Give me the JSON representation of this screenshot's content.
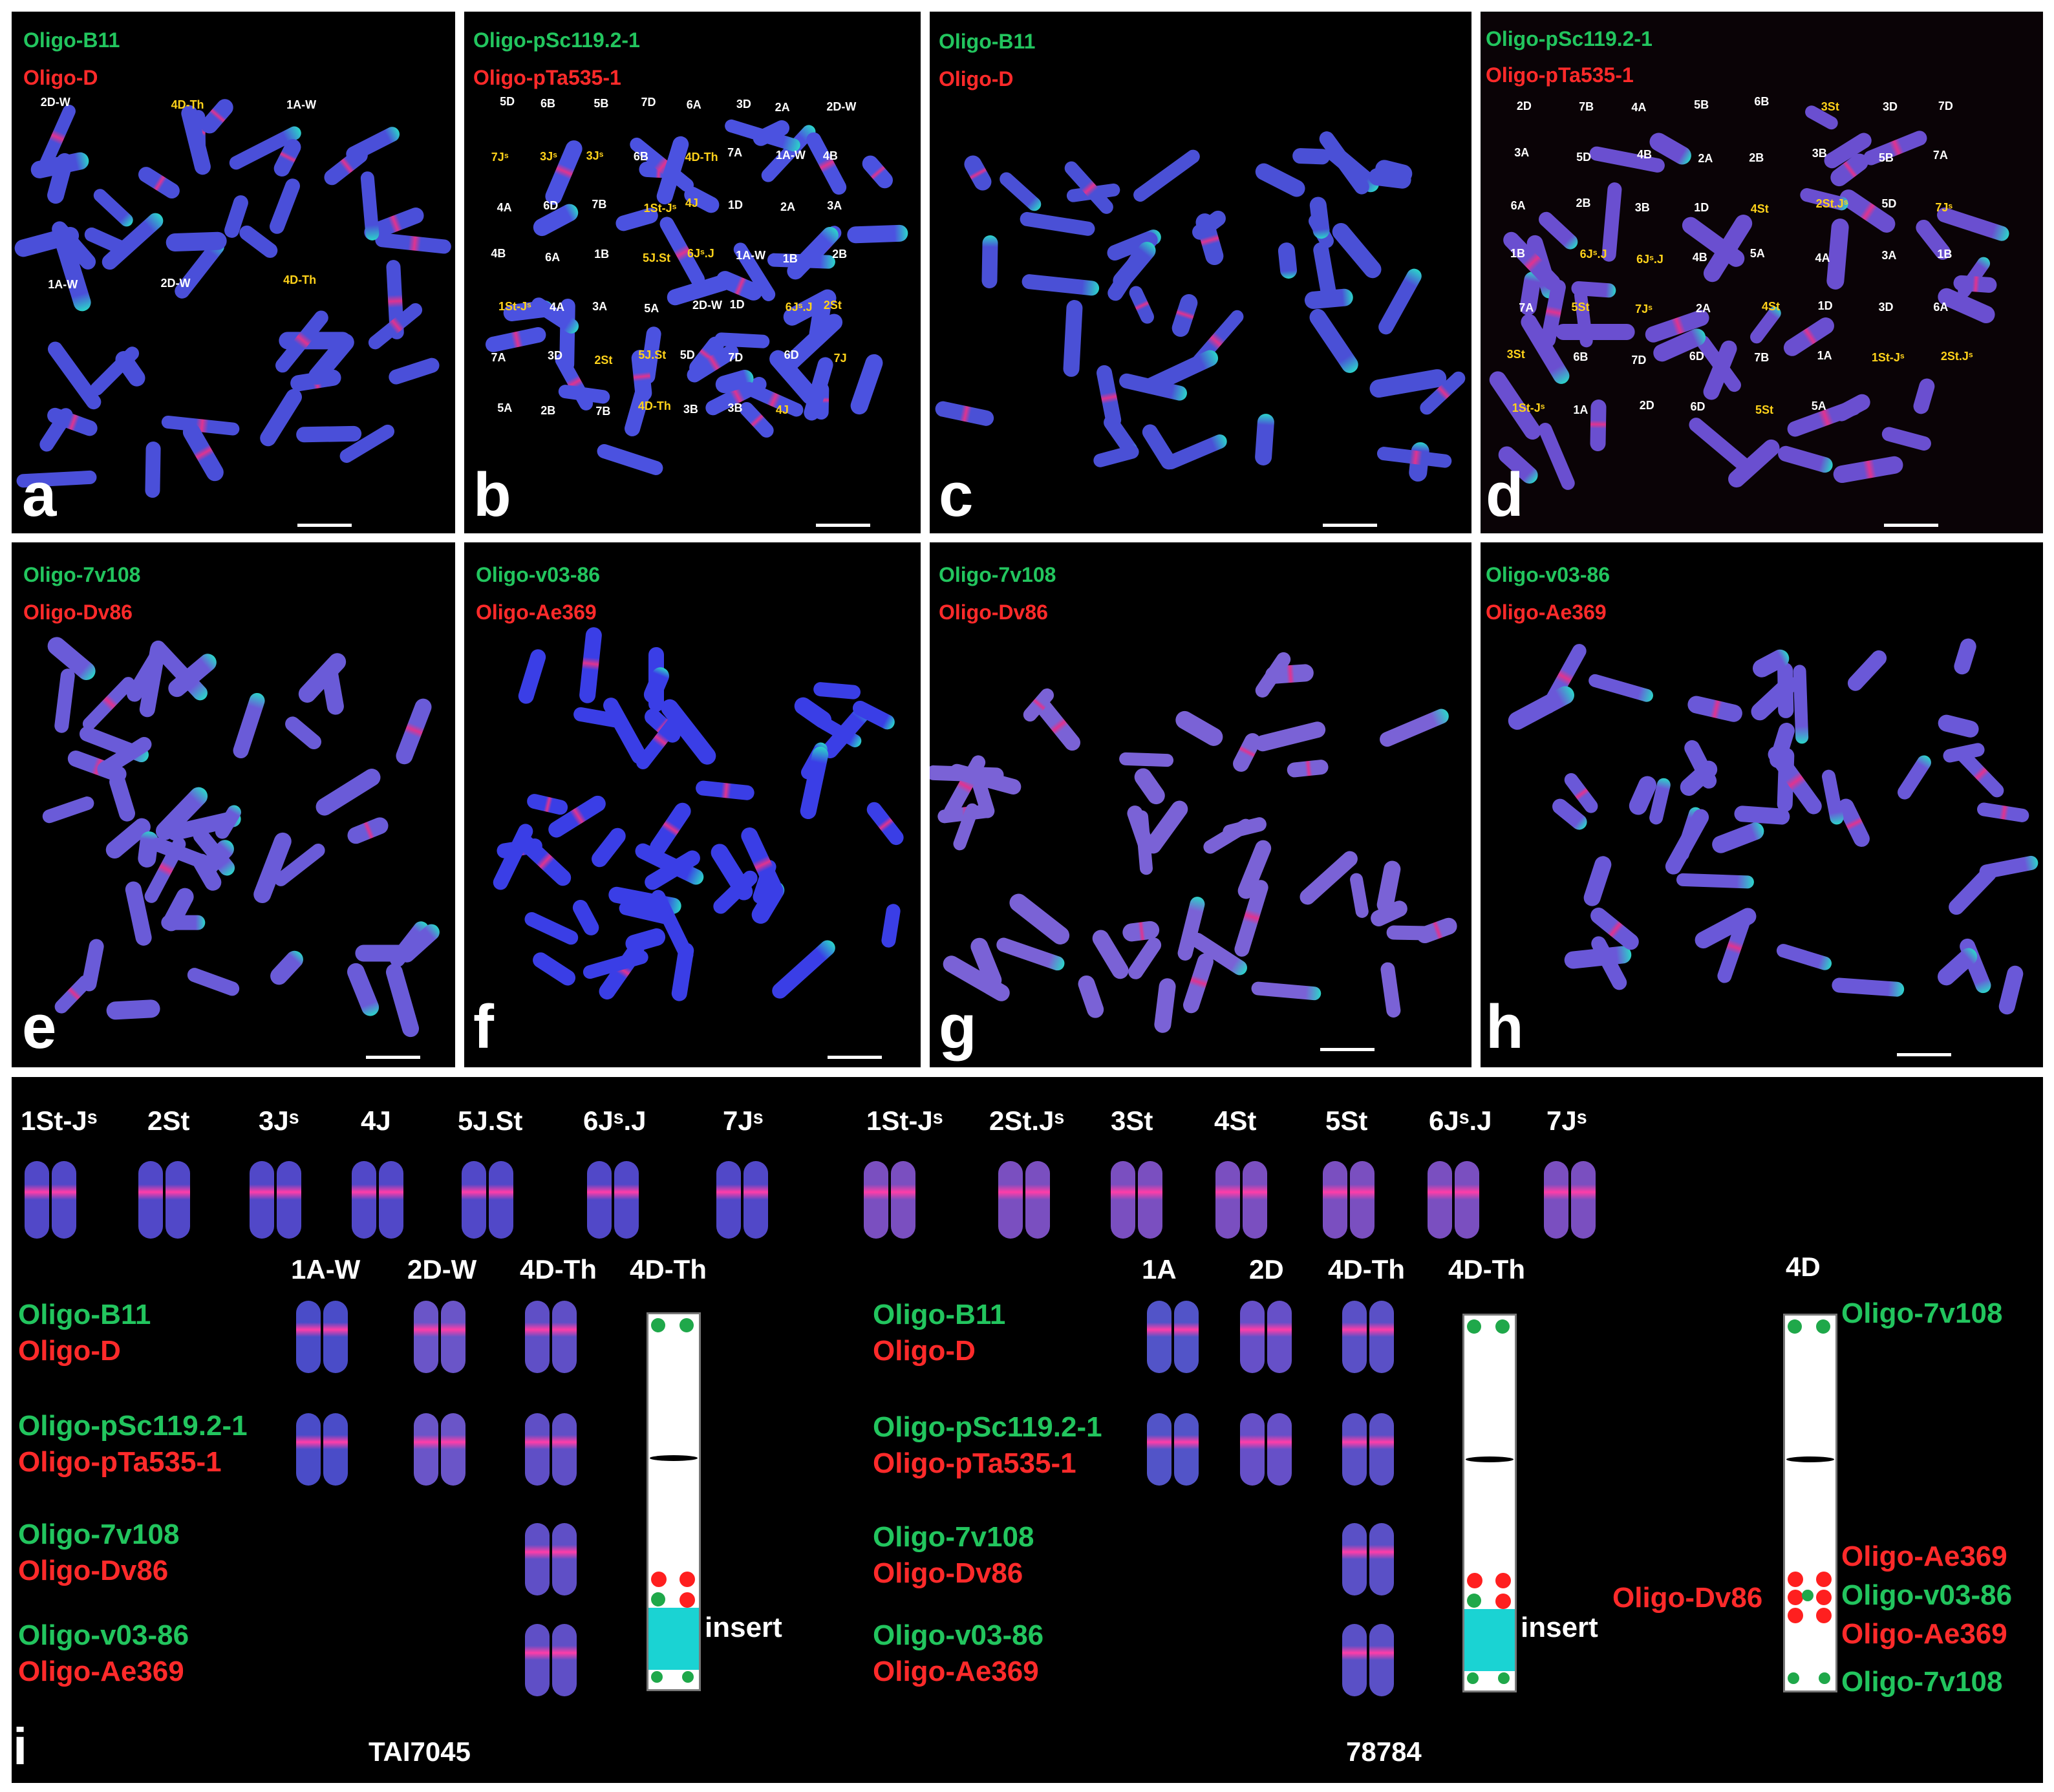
{
  "colors": {
    "green": "#22c55e",
    "red": "#ff2a2a",
    "white": "#ffffff",
    "yellow": "#ffd21a",
    "background": "#000000"
  },
  "panels": [
    {
      "id": "a",
      "letter": "a",
      "probe_green": "Oligo-B11",
      "probe_red": "Oligo-D",
      "labels": [
        {
          "text": "2D-W",
          "color": "white"
        },
        {
          "text": "4D-Th",
          "color": "yellow"
        },
        {
          "text": "1A-W",
          "color": "white"
        },
        {
          "text": "1A-W",
          "color": "white"
        },
        {
          "text": "2D-W",
          "color": "white"
        },
        {
          "text": "4D-Th",
          "color": "yellow"
        }
      ]
    },
    {
      "id": "b",
      "letter": "b",
      "probe_green": "Oligo-pSc119.2-1",
      "probe_red": "Oligo-pTa535-1",
      "labels": [
        {
          "text": "5D",
          "color": "white"
        },
        {
          "text": "6B",
          "color": "white"
        },
        {
          "text": "5B",
          "color": "white"
        },
        {
          "text": "7D",
          "color": "white"
        },
        {
          "text": "6A",
          "color": "white"
        },
        {
          "text": "3D",
          "color": "white"
        },
        {
          "text": "2A",
          "color": "white"
        },
        {
          "text": "2D-W",
          "color": "white"
        },
        {
          "text": "7Jˢ",
          "color": "yellow"
        },
        {
          "text": "3Jˢ",
          "color": "yellow"
        },
        {
          "text": "3Jˢ",
          "color": "yellow"
        },
        {
          "text": "6B",
          "color": "white"
        },
        {
          "text": "4D-Th",
          "color": "yellow"
        },
        {
          "text": "7A",
          "color": "white"
        },
        {
          "text": "1A-W",
          "color": "white"
        },
        {
          "text": "4B",
          "color": "white"
        },
        {
          "text": "4A",
          "color": "white"
        },
        {
          "text": "6D",
          "color": "white"
        },
        {
          "text": "7B",
          "color": "white"
        },
        {
          "text": "1St-Jˢ",
          "color": "yellow"
        },
        {
          "text": "4J",
          "color": "yellow"
        },
        {
          "text": "1D",
          "color": "white"
        },
        {
          "text": "2A",
          "color": "white"
        },
        {
          "text": "3A",
          "color": "white"
        },
        {
          "text": "4B",
          "color": "white"
        },
        {
          "text": "6A",
          "color": "white"
        },
        {
          "text": "1B",
          "color": "white"
        },
        {
          "text": "5J.St",
          "color": "yellow"
        },
        {
          "text": "6Jˢ.J",
          "color": "yellow"
        },
        {
          "text": "1A-W",
          "color": "white"
        },
        {
          "text": "1B",
          "color": "white"
        },
        {
          "text": "2B",
          "color": "white"
        },
        {
          "text": "1St-Jˢ",
          "color": "yellow"
        },
        {
          "text": "4A",
          "color": "white"
        },
        {
          "text": "3A",
          "color": "white"
        },
        {
          "text": "5A",
          "color": "white"
        },
        {
          "text": "2D-W",
          "color": "white"
        },
        {
          "text": "1D",
          "color": "white"
        },
        {
          "text": "6Jˢ.J",
          "color": "yellow"
        },
        {
          "text": "2St",
          "color": "yellow"
        },
        {
          "text": "7A",
          "color": "white"
        },
        {
          "text": "3D",
          "color": "white"
        },
        {
          "text": "2St",
          "color": "yellow"
        },
        {
          "text": "5J.St",
          "color": "yellow"
        },
        {
          "text": "5D",
          "color": "white"
        },
        {
          "text": "7D",
          "color": "white"
        },
        {
          "text": "6D",
          "color": "white"
        },
        {
          "text": "7J",
          "color": "yellow"
        },
        {
          "text": "5A",
          "color": "white"
        },
        {
          "text": "2B",
          "color": "white"
        },
        {
          "text": "7B",
          "color": "white"
        },
        {
          "text": "4D-Th",
          "color": "yellow"
        },
        {
          "text": "3B",
          "color": "white"
        },
        {
          "text": "3B",
          "color": "white"
        },
        {
          "text": "4J",
          "color": "yellow"
        }
      ]
    },
    {
      "id": "c",
      "letter": "c",
      "probe_green": "Oligo-B11",
      "probe_red": "Oligo-D",
      "labels": []
    },
    {
      "id": "d",
      "letter": "d",
      "probe_green": "Oligo-pSc119.2-1",
      "probe_red": "Oligo-pTa535-1",
      "labels": [
        {
          "text": "2D",
          "color": "white"
        },
        {
          "text": "7B",
          "color": "white"
        },
        {
          "text": "4A",
          "color": "white"
        },
        {
          "text": "5B",
          "color": "white"
        },
        {
          "text": "6B",
          "color": "white"
        },
        {
          "text": "3St",
          "color": "yellow"
        },
        {
          "text": "3D",
          "color": "white"
        },
        {
          "text": "7D",
          "color": "white"
        },
        {
          "text": "3A",
          "color": "white"
        },
        {
          "text": "5D",
          "color": "white"
        },
        {
          "text": "4B",
          "color": "white"
        },
        {
          "text": "2A",
          "color": "white"
        },
        {
          "text": "2B",
          "color": "white"
        },
        {
          "text": "3B",
          "color": "white"
        },
        {
          "text": "5B",
          "color": "white"
        },
        {
          "text": "7A",
          "color": "white"
        },
        {
          "text": "6A",
          "color": "white"
        },
        {
          "text": "2B",
          "color": "white"
        },
        {
          "text": "3B",
          "color": "white"
        },
        {
          "text": "1D",
          "color": "white"
        },
        {
          "text": "4St",
          "color": "yellow"
        },
        {
          "text": "2St.Jˢ",
          "color": "yellow"
        },
        {
          "text": "5D",
          "color": "white"
        },
        {
          "text": "7Jˢ",
          "color": "yellow"
        },
        {
          "text": "1B",
          "color": "white"
        },
        {
          "text": "6Jˢ.J",
          "color": "yellow"
        },
        {
          "text": "6Jˢ.J",
          "color": "yellow"
        },
        {
          "text": "4B",
          "color": "white"
        },
        {
          "text": "5A",
          "color": "white"
        },
        {
          "text": "4A",
          "color": "white"
        },
        {
          "text": "3A",
          "color": "white"
        },
        {
          "text": "1B",
          "color": "white"
        },
        {
          "text": "7A",
          "color": "white"
        },
        {
          "text": "5St",
          "color": "yellow"
        },
        {
          "text": "7Jˢ",
          "color": "yellow"
        },
        {
          "text": "2A",
          "color": "white"
        },
        {
          "text": "4St",
          "color": "yellow"
        },
        {
          "text": "1D",
          "color": "white"
        },
        {
          "text": "3D",
          "color": "white"
        },
        {
          "text": "6A",
          "color": "white"
        },
        {
          "text": "3St",
          "color": "yellow"
        },
        {
          "text": "6B",
          "color": "white"
        },
        {
          "text": "7D",
          "color": "white"
        },
        {
          "text": "6D",
          "color": "white"
        },
        {
          "text": "7B",
          "color": "white"
        },
        {
          "text": "1A",
          "color": "white"
        },
        {
          "text": "1St-Jˢ",
          "color": "yellow"
        },
        {
          "text": "2St.Jˢ",
          "color": "yellow"
        },
        {
          "text": "1St-Jˢ",
          "color": "yellow"
        },
        {
          "text": "1A",
          "color": "white"
        },
        {
          "text": "2D",
          "color": "white"
        },
        {
          "text": "6D",
          "color": "white"
        },
        {
          "text": "5St",
          "color": "yellow"
        },
        {
          "text": "5A",
          "color": "white"
        }
      ]
    },
    {
      "id": "e",
      "letter": "e",
      "probe_green": "Oligo-7v108",
      "probe_red": "Oligo-Dv86",
      "labels": []
    },
    {
      "id": "f",
      "letter": "f",
      "probe_green": "Oligo-v03-86",
      "probe_red": "Oligo-Ae369",
      "labels": []
    },
    {
      "id": "g",
      "letter": "g",
      "probe_green": "Oligo-7v108",
      "probe_red": "Oligo-Dv86",
      "labels": []
    },
    {
      "id": "h",
      "letter": "h",
      "probe_green": "Oligo-v03-86",
      "probe_red": "Oligo-Ae369",
      "labels": []
    }
  ],
  "panel_i": {
    "letter": "i",
    "left_group": {
      "title": "TAI7045",
      "top_headers": [
        "1St-Jˢ",
        "2St",
        "3Jˢ",
        "4J",
        "5J.St",
        "6Jˢ.J",
        "7Jˢ"
      ],
      "row_headers": [
        "1A-W",
        "2D-W",
        "4D-Th",
        "4D-Th"
      ],
      "insert_label": "insert"
    },
    "right_group": {
      "title": "78784",
      "top_headers": [
        "1St-Jˢ",
        "2St.Jˢ",
        "3St",
        "4St",
        "5St",
        "6Jˢ.J",
        "7Jˢ"
      ],
      "row_headers": [
        "1A",
        "2D",
        "4D-Th",
        "4D-Th"
      ],
      "ideogram_4d_title": "4D",
      "insert_label": "insert"
    },
    "probe_rows": [
      {
        "green": "Oligo-B11",
        "red": "Oligo-D"
      },
      {
        "green": "Oligo-pSc119.2-1",
        "red": "Oligo-pTa535-1"
      },
      {
        "green": "Oligo-7v108",
        "red": "Oligo-Dv86"
      },
      {
        "green": "Oligo-v03-86",
        "red": "Oligo-Ae369"
      }
    ],
    "ideogram_4d_labels": {
      "top_green": "Oligo-7v108",
      "red_left": "Oligo-Dv86",
      "red_upper": "Oligo-Ae369",
      "green_mid": "Oligo-v03-86",
      "red_lower": "Oligo-Ae369",
      "bottom_green": "Oligo-7v108"
    }
  }
}
